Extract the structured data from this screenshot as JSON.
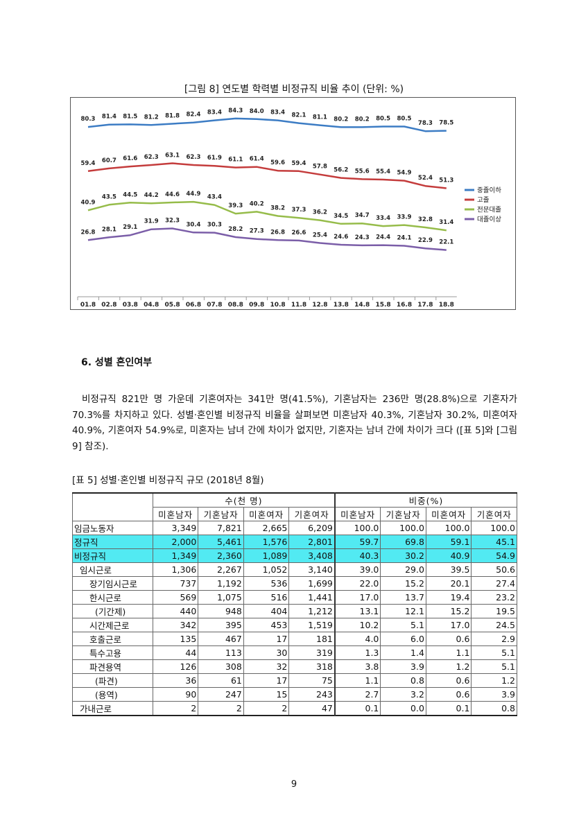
{
  "figure": {
    "caption": "[그림 8] 연도별 학력별 비정규직 비율 추이 (단위: %)"
  },
  "chart_data": {
    "type": "line",
    "title": "[그림 8] 연도별 학력별 비정규직 비율 추이 (단위: %)",
    "xlabel": "",
    "ylabel": "%",
    "categories": [
      "01.8",
      "02.8",
      "03.8",
      "04.8",
      "05.8",
      "06.8",
      "07.8",
      "08.8",
      "09.8",
      "10.8",
      "11.8",
      "12.8",
      "13.8",
      "14.8",
      "15.8",
      "16.8",
      "17.8",
      "18.8"
    ],
    "legend_position": "right",
    "grid": false,
    "series": [
      {
        "name": "중졸이하",
        "color": "#3c7cc4",
        "values": [
          80.3,
          81.4,
          81.5,
          81.2,
          81.8,
          82.4,
          83.4,
          84.3,
          84.0,
          83.4,
          82.1,
          81.1,
          80.2,
          80.2,
          80.5,
          80.5,
          78.3,
          78.5
        ]
      },
      {
        "name": "고졸",
        "color": "#c43c3c",
        "values": [
          59.4,
          60.7,
          61.6,
          62.3,
          63.1,
          62.3,
          61.9,
          61.1,
          61.4,
          59.6,
          59.4,
          57.8,
          56.2,
          55.6,
          55.4,
          54.9,
          52.4,
          51.3
        ]
      },
      {
        "name": "전문대졸",
        "color": "#96bc4a",
        "values": [
          40.9,
          43.5,
          44.5,
          44.2,
          44.6,
          44.9,
          43.4,
          39.3,
          40.2,
          38.2,
          37.3,
          36.2,
          34.5,
          34.7,
          33.4,
          33.9,
          32.8,
          31.4
        ]
      },
      {
        "name": "대졸이상",
        "color": "#7b5ea8",
        "values": [
          26.8,
          28.1,
          29.1,
          31.9,
          32.3,
          30.4,
          30.3,
          28.2,
          27.3,
          26.8,
          26.6,
          25.4,
          24.6,
          24.3,
          24.4,
          24.1,
          22.9,
          22.1
        ]
      }
    ]
  },
  "section": {
    "heading": "6. 성별 혼인여부",
    "paragraph": "비정규직 821만 명 가운데 기혼여자는 341만 명(41.5%), 기혼남자는 236만 명(28.8%)으로 기혼자가 70.3%를 차지하고 있다. 성별·혼인별 비정규직 비율을 살펴보면 미혼남자 40.3%, 기혼남자 30.2%, 미혼여자 40.9%, 기혼여자 54.9%로, 미혼자는 남녀 간에 차이가 없지만, 기혼자는 남녀 간에 차이가 크다 ([표 5]와 [그림 9] 참조)."
  },
  "table": {
    "caption": "[표 5] 성별·혼인별 비정규직 규모 (2018년 8월)",
    "group_headers": [
      "수(천 명)",
      "비중(%)"
    ],
    "col_headers": [
      "미혼남자",
      "기혼남자",
      "미혼여자",
      "기혼여자",
      "미혼남자",
      "기혼남자",
      "미혼여자",
      "기혼여자"
    ],
    "rows": [
      {
        "label": "임금노동자",
        "indent": 0,
        "highlight": false,
        "cells": [
          "3,349",
          "7,821",
          "2,665",
          "6,209",
          "100.0",
          "100.0",
          "100.0",
          "100.0"
        ]
      },
      {
        "label": "정규직",
        "indent": 0,
        "highlight": true,
        "cells": [
          "2,000",
          "5,461",
          "1,576",
          "2,801",
          "59.7",
          "69.8",
          "59.1",
          "45.1"
        ]
      },
      {
        "label": "비정규직",
        "indent": 0,
        "highlight": true,
        "cells": [
          "1,349",
          "2,360",
          "1,089",
          "3,408",
          "40.3",
          "30.2",
          "40.9",
          "54.9"
        ]
      },
      {
        "label": "임시근로",
        "indent": 1,
        "highlight": false,
        "cells": [
          "1,306",
          "2,267",
          "1,052",
          "3,140",
          "39.0",
          "29.0",
          "39.5",
          "50.6"
        ]
      },
      {
        "label": "장기임시근로",
        "indent": 2,
        "highlight": false,
        "cells": [
          "737",
          "1,192",
          "536",
          "1,699",
          "22.0",
          "15.2",
          "20.1",
          "27.4"
        ]
      },
      {
        "label": "한시근로",
        "indent": 2,
        "highlight": false,
        "cells": [
          "569",
          "1,075",
          "516",
          "1,441",
          "17.0",
          "13.7",
          "19.4",
          "23.2"
        ]
      },
      {
        "label": "(기간제)",
        "indent": 3,
        "highlight": false,
        "cells": [
          "440",
          "948",
          "404",
          "1,212",
          "13.1",
          "12.1",
          "15.2",
          "19.5"
        ]
      },
      {
        "label": "시간제근로",
        "indent": 2,
        "highlight": false,
        "cells": [
          "342",
          "395",
          "453",
          "1,519",
          "10.2",
          "5.1",
          "17.0",
          "24.5"
        ]
      },
      {
        "label": "호출근로",
        "indent": 2,
        "highlight": false,
        "cells": [
          "135",
          "467",
          "17",
          "181",
          "4.0",
          "6.0",
          "0.6",
          "2.9"
        ]
      },
      {
        "label": "특수고용",
        "indent": 2,
        "highlight": false,
        "cells": [
          "44",
          "113",
          "30",
          "319",
          "1.3",
          "1.4",
          "1.1",
          "5.1"
        ]
      },
      {
        "label": "파견용역",
        "indent": 2,
        "highlight": false,
        "cells": [
          "126",
          "308",
          "32",
          "318",
          "3.8",
          "3.9",
          "1.2",
          "5.1"
        ]
      },
      {
        "label": "(파견)",
        "indent": 3,
        "highlight": false,
        "cells": [
          "36",
          "61",
          "17",
          "75",
          "1.1",
          "0.8",
          "0.6",
          "1.2"
        ]
      },
      {
        "label": "(용역)",
        "indent": 3,
        "highlight": false,
        "cells": [
          "90",
          "247",
          "15",
          "243",
          "2.7",
          "3.2",
          "0.6",
          "3.9"
        ]
      },
      {
        "label": "가내근로",
        "indent": 1,
        "highlight": false,
        "cells": [
          "2",
          "2",
          "2",
          "47",
          "0.1",
          "0.0",
          "0.1",
          "0.8"
        ]
      }
    ]
  },
  "page_number": "9"
}
